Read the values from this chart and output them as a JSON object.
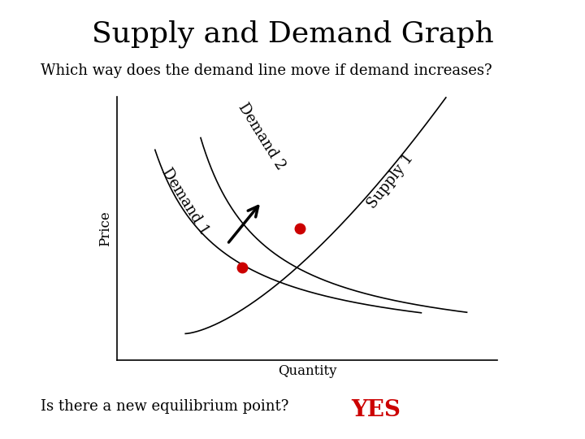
{
  "title": "Supply and Demand Graph",
  "subtitle": "Which way does the demand line move if demand increases?",
  "xlabel": "Quantity",
  "ylabel": "Price",
  "footer_question": "Is there a new equilibrium point?",
  "footer_answer": "YES",
  "footer_answer_color": "#cc0000",
  "background_color": "#ffffff",
  "curve_color": "#000000",
  "dot_color": "#cc0000",
  "title_fontsize": 26,
  "subtitle_fontsize": 13,
  "label_fontsize": 12,
  "curve_label_fontsize": 13,
  "footer_fontsize": 13,
  "yes_fontsize": 20,
  "xlim": [
    0,
    10
  ],
  "ylim": [
    0,
    10
  ],
  "demand1_label": "Demand 1",
  "demand2_label": "Demand 2",
  "supply1_label": "Supply 1",
  "eq1_x": 3.3,
  "eq1_y": 3.5,
  "eq2_x": 4.8,
  "eq2_y": 5.0
}
